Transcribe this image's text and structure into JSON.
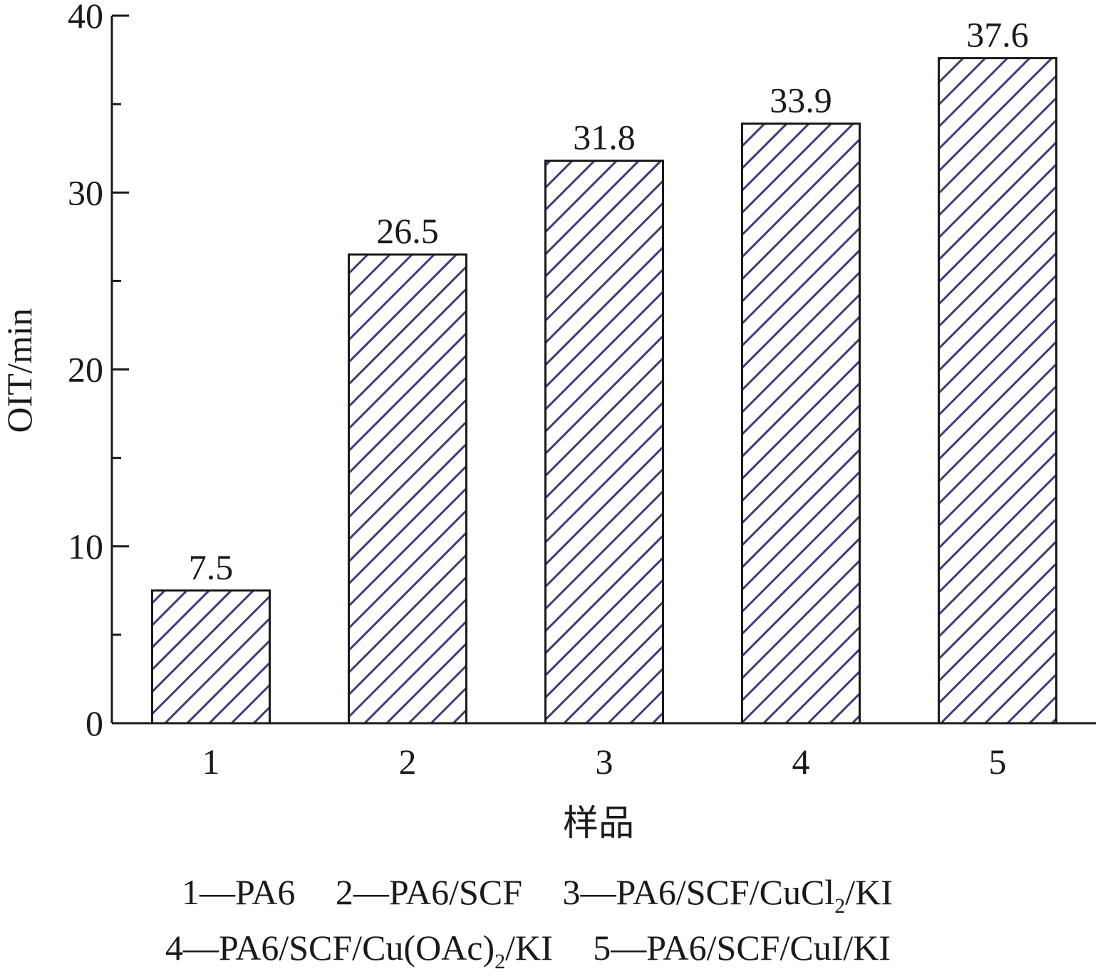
{
  "chart_data": {
    "type": "bar",
    "categories": [
      "1",
      "2",
      "3",
      "4",
      "5"
    ],
    "values": [
      7.5,
      26.5,
      31.8,
      33.9,
      37.6
    ],
    "value_labels": [
      "7.5",
      "26.5",
      "31.8",
      "33.9",
      "37.6"
    ],
    "title": "",
    "xlabel": "样品",
    "ylabel": "OIT/min",
    "ylim": [
      0,
      40
    ],
    "yticks": [
      "0",
      "10",
      "20",
      "30",
      "40"
    ],
    "grid": false,
    "bar_fill": "hatched-diagonal",
    "colors": {
      "hatch": "#3b3d7a",
      "outline": "#1a1a1a",
      "axis": "#1a1a1a"
    }
  },
  "legend": {
    "line1": [
      {
        "key": "1",
        "name": "PA6"
      },
      {
        "key": "2",
        "name": "PA6/SCF"
      },
      {
        "key": "3",
        "name_before": "PA6/SCF/CuCl",
        "sub": "2",
        "name_after": "/KI"
      }
    ],
    "line2": [
      {
        "key": "4",
        "name_before": "PA6/SCF/Cu(OAc)",
        "sub": "2",
        "name_after": "/KI"
      },
      {
        "key": "5",
        "name": "PA6/SCF/CuI/KI"
      }
    ],
    "dash": "—"
  }
}
